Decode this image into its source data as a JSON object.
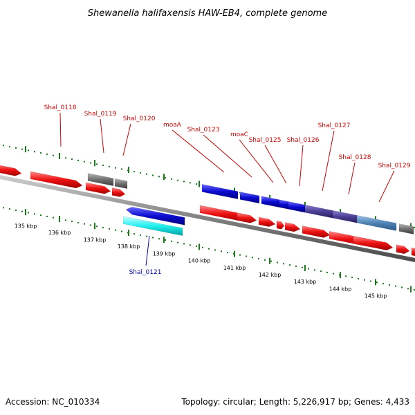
{
  "title": "Shewanella halifaxensis HAW-EB4, complete genome",
  "footer": {
    "accession": "Accession: NC_010334",
    "topology": "Topology: circular; Length: 5,226,917 bp; Genes: 4,433"
  },
  "colors": {
    "backbone": "#808080",
    "forward_label": "#cc0000",
    "reverse_label": "#0000aa",
    "scale_dots": "#1a7a1a",
    "red_gene": "#ee1111",
    "blue_gene": "#0a0ad0",
    "gray_gene": "#707070",
    "cyan_gene": "#22f0f0",
    "purple_gene": "#4b3f95",
    "steel_gene": "#4f83b5"
  },
  "scale": {
    "ticks": [
      "135 kbp",
      "136 kbp",
      "137 kbp",
      "138 kbp",
      "139 kbp",
      "140 kbp",
      "141 kbp",
      "142 kbp",
      "143 kbp",
      "144 kbp",
      "145 kbp"
    ]
  },
  "genes": {
    "forward_labels": [
      "Shal_0118",
      "Shal_0119",
      "Shal_0120",
      "moaA",
      "Shal_0123",
      "moaC",
      "Shal_0125",
      "Shal_0126",
      "Shal_0127",
      "Shal_0128",
      "Shal_0129"
    ],
    "reverse_labels": [
      "Shal_0121"
    ]
  }
}
